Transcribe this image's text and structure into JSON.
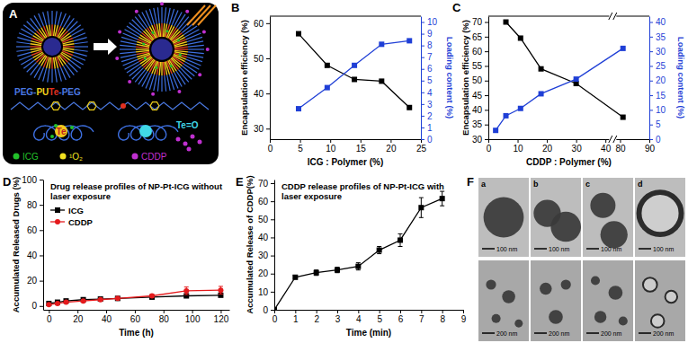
{
  "panel_labels": [
    "A",
    "B",
    "C",
    "D",
    "E",
    "F"
  ],
  "schematic": {
    "polymer_parts": [
      "PEG-",
      "PU",
      "Te",
      "-PEG"
    ],
    "polymer_colors": [
      "#4a78e0",
      "#f2d21b",
      "#e03020",
      "#4a78e0"
    ],
    "labels": [
      "Te",
      "Te=O"
    ],
    "legend": [
      {
        "label": "ICG",
        "color": "#22c02a"
      },
      {
        "label": "¹O₂",
        "color": "#f0e020"
      },
      {
        "label": "CDDP",
        "color": "#c030d0"
      }
    ]
  },
  "chart_data": [
    {
      "type": "line",
      "x": [
        4.76,
        9.5,
        14,
        18.5,
        23.1
      ],
      "xlabel": "ICG : Polymer (%)",
      "ylabel": "Encapsulation efficiency (%)",
      "y2label": "Loading content (%)",
      "xlim": [
        0,
        25
      ],
      "xticks": [
        0,
        5,
        10,
        15,
        20,
        25
      ],
      "ylim": [
        27,
        62
      ],
      "yticks": [
        30,
        40,
        50,
        60
      ],
      "y2lim": [
        0,
        10.5
      ],
      "y2ticks": [
        0,
        1,
        2,
        3,
        4,
        5,
        6,
        7,
        8,
        9,
        10
      ],
      "series": [
        {
          "color": "#000000",
          "values": [
            57,
            48,
            44,
            43.5,
            36
          ],
          "marker": "square",
          "line_style": "solid"
        },
        {
          "color": "#1f3fd6",
          "values": [
            2.6,
            4.4,
            6.3,
            8.1,
            8.4
          ],
          "marker": "square",
          "line_style": "solid",
          "axis": "y2"
        }
      ]
    },
    {
      "type": "line",
      "x": [
        2.5,
        6,
        11,
        18,
        30,
        81
      ],
      "xlabel": "CDDP : Polymer (%)",
      "ylabel": "Encapsulation efficiency (%)",
      "y2label": "Loading content (%)",
      "xlim": [
        0,
        90
      ],
      "xticks": [
        0,
        10,
        20,
        30,
        40,
        80,
        90
      ],
      "ylim": [
        30,
        72
      ],
      "yticks": [
        30,
        35,
        40,
        45,
        50,
        55,
        60,
        65,
        70
      ],
      "y2lim": [
        0,
        42
      ],
      "y2ticks": [
        0,
        5,
        10,
        15,
        20,
        25,
        30,
        35,
        40
      ],
      "series": [
        {
          "color": "#000000",
          "values": [
            null,
            70,
            64.5,
            54,
            49,
            37.5
          ],
          "marker": "square",
          "line_style": "solid"
        },
        {
          "color": "#1f3fd6",
          "values": [
            3,
            8,
            10.5,
            15.5,
            20.5,
            31
          ],
          "marker": "square",
          "line_style": "solid",
          "axis": "y2"
        }
      ]
    },
    {
      "type": "line",
      "title": "Drug release profiles of NP-Pt-ICG without laser exposure",
      "x": [
        0,
        6,
        12,
        24,
        36,
        48,
        72,
        96,
        120
      ],
      "xlabel": "Time (h)",
      "ylabel": "Accumulated Released Drugs (%)",
      "xlim": [
        -4,
        126
      ],
      "xticks": [
        0,
        20,
        40,
        60,
        80,
        100,
        120
      ],
      "ylim": [
        -3,
        100
      ],
      "yticks": [
        0,
        20,
        40,
        60,
        80,
        100
      ],
      "legend": "upper left",
      "series": [
        {
          "name": "ICG",
          "color": "#000000",
          "values": [
            2,
            3,
            4,
            5,
            5.5,
            6,
            7,
            8,
            8.5
          ],
          "marker": "square",
          "line_style": "solid"
        },
        {
          "name": "CDDP",
          "color": "#e41a1c",
          "values": [
            1,
            2,
            3,
            4,
            5,
            6,
            8,
            12,
            12.5
          ],
          "errors": [
            0.5,
            0.5,
            0.5,
            0.5,
            0.5,
            0.5,
            1,
            3,
            3
          ],
          "marker": "circle",
          "line_style": "solid"
        }
      ]
    },
    {
      "type": "line",
      "title": "CDDP release profiles of NP-Pt-ICG with laser exposure",
      "x": [
        0,
        1,
        2,
        3,
        4,
        5,
        6,
        7,
        8
      ],
      "xlabel": "Time (min)",
      "ylabel": "Accumulated Release of CDDP(%)",
      "xlim": [
        0,
        9
      ],
      "xticks": [
        0,
        1,
        2,
        3,
        4,
        5,
        6,
        7,
        8,
        9
      ],
      "ylim": [
        0,
        72
      ],
      "yticks": [
        0,
        10,
        20,
        30,
        40,
        50,
        60,
        70
      ],
      "series": [
        {
          "color": "#000000",
          "values": [
            0,
            18,
            20.5,
            22,
            24,
            33,
            38.5,
            56.5,
            61.5
          ],
          "errors": [
            0,
            1,
            1.5,
            1.5,
            2,
            2,
            3.5,
            5.5,
            4
          ],
          "marker": "square",
          "line_style": "solid"
        }
      ]
    }
  ],
  "micrographs": {
    "panels": [
      "a",
      "b",
      "c",
      "d"
    ],
    "scale_bars": [
      "100 nm",
      "200 nm"
    ]
  }
}
